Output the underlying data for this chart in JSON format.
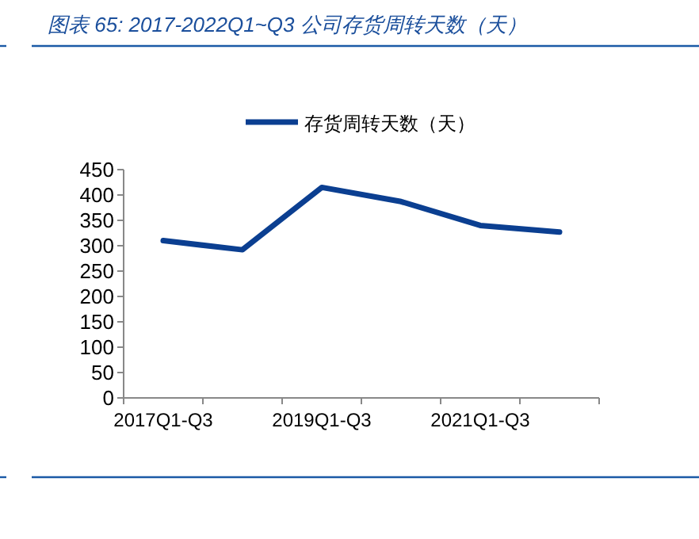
{
  "chart_data": {
    "type": "line",
    "title": "图表 65:  2017-2022Q1~Q3 公司存货周转天数（天）",
    "categories": [
      "2017Q1-Q3",
      null,
      "2019Q1-Q3",
      null,
      "2021Q1-Q3",
      null
    ],
    "series": [
      {
        "name": "存货周转天数（天）",
        "color": "#0b3f91",
        "values": [
          310,
          292,
          415,
          387,
          340,
          327
        ]
      }
    ],
    "ylim": [
      0,
      450
    ],
    "yticks": [
      0,
      50,
      100,
      150,
      200,
      250,
      300,
      350,
      400,
      450
    ],
    "grid": false,
    "legend": "top",
    "marker": "none",
    "line_style": "solid"
  }
}
